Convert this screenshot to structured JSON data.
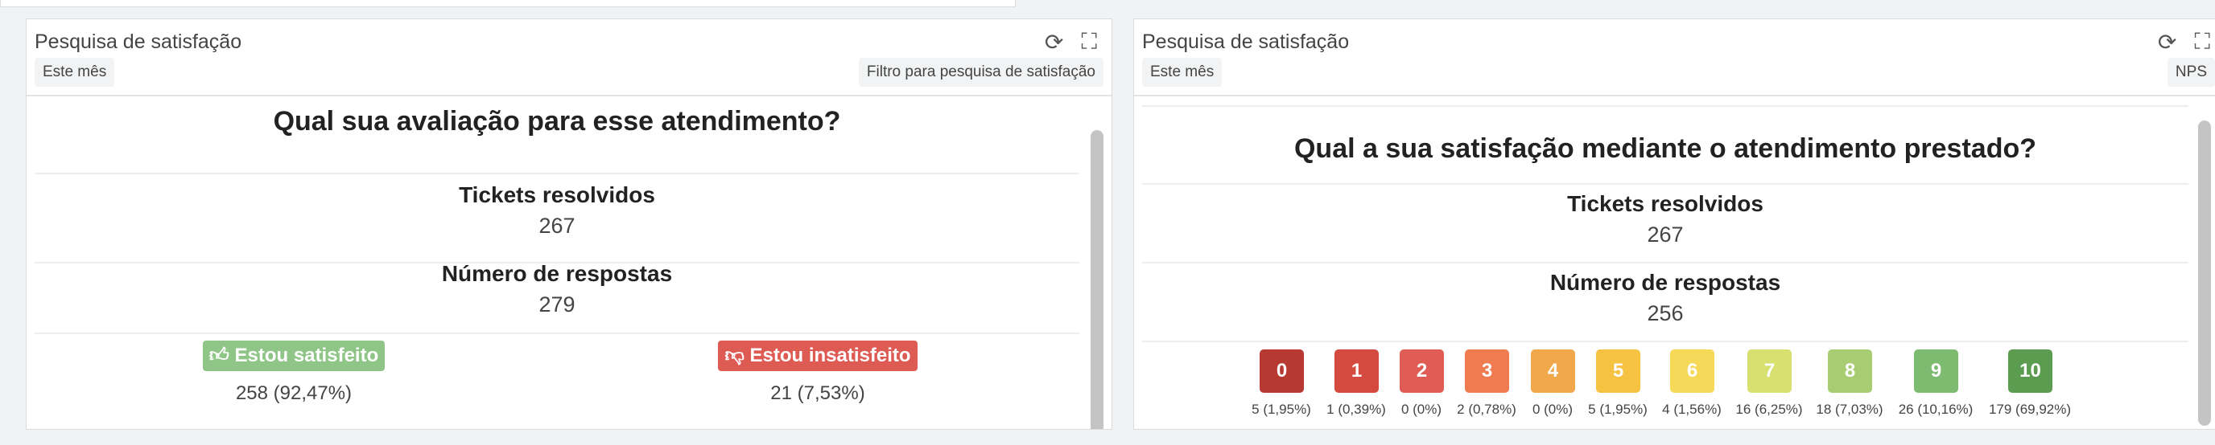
{
  "widgets": [
    {
      "title": "Pesquisa de satisfação",
      "period": "Este mês",
      "filter": "Filtro para pesquisa de satisfação",
      "question": "Qual sua avaliação para esse atendimento?",
      "tickets_label": "Tickets resolvidos",
      "tickets_value": "267",
      "responses_label": "Número de respostas",
      "responses_value": "279",
      "options": [
        {
          "label": "Estou satisfeito",
          "result": "258 (92,47%)",
          "icon": "thumbs-up-icon",
          "color": "#8fc688"
        },
        {
          "label": "Estou insatisfeito",
          "result": "21 (7,53%)",
          "icon": "thumbs-down-icon",
          "color": "#de5b54"
        }
      ]
    },
    {
      "title": "Pesquisa de satisfação",
      "period": "Este mês",
      "filter": "NPS",
      "question": "Qual a sua satisfação mediante o atendimento prestado?",
      "tickets_label": "Tickets resolvidos",
      "tickets_value": "267",
      "responses_label": "Número de respostas",
      "responses_value": "256",
      "scores": [
        {
          "score": "0",
          "result": "5 (1,95%)",
          "color": "#b83832"
        },
        {
          "score": "1",
          "result": "1 (0,39%)",
          "color": "#d44a3f"
        },
        {
          "score": "2",
          "result": "0 (0%)",
          "color": "#e05d55"
        },
        {
          "score": "3",
          "result": "2 (0,78%)",
          "color": "#ef7b50"
        },
        {
          "score": "4",
          "result": "0 (0%)",
          "color": "#f1a84a"
        },
        {
          "score": "5",
          "result": "5 (1,95%)",
          "color": "#f5c242"
        },
        {
          "score": "6",
          "result": "4 (1,56%)",
          "color": "#f7d95a"
        },
        {
          "score": "7",
          "result": "16 (6,25%)",
          "color": "#d8e06f"
        },
        {
          "score": "8",
          "result": "18 (7,03%)",
          "color": "#a8cc72"
        },
        {
          "score": "9",
          "result": "26 (10,16%)",
          "color": "#7cbb70"
        },
        {
          "score": "10",
          "result": "179 (69,92%)",
          "color": "#5b9c50"
        }
      ]
    }
  ]
}
